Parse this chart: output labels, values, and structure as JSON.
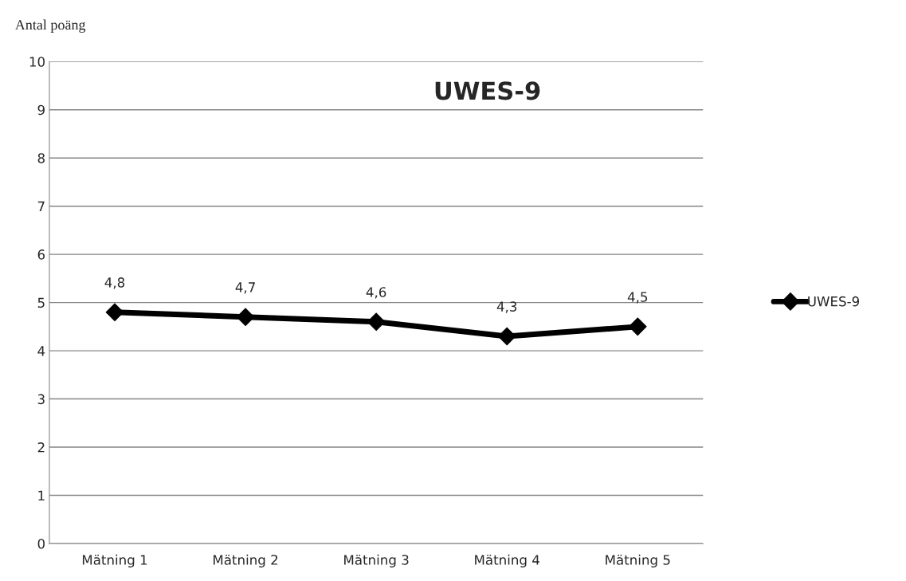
{
  "chart_data": {
    "type": "line",
    "title": "UWES-9",
    "ylabel": "Antal poäng",
    "categories": [
      "Mätning 1",
      "Mätning 2",
      "Mätning 3",
      "Mätning 4",
      "Mätning 5"
    ],
    "series": [
      {
        "name": "UWES-9",
        "color": "#000000",
        "values": [
          4.8,
          4.7,
          4.6,
          4.3,
          4.5
        ],
        "value_labels": [
          "4,8",
          "4,7",
          "4,6",
          "4,3",
          "4,5"
        ]
      }
    ],
    "ylim": [
      0,
      10
    ],
    "yticks": [
      0,
      1,
      2,
      3,
      4,
      5,
      6,
      7,
      8,
      9,
      10
    ],
    "grid": "y",
    "legend": "right",
    "marker": "diamond",
    "line_style": "solid"
  }
}
